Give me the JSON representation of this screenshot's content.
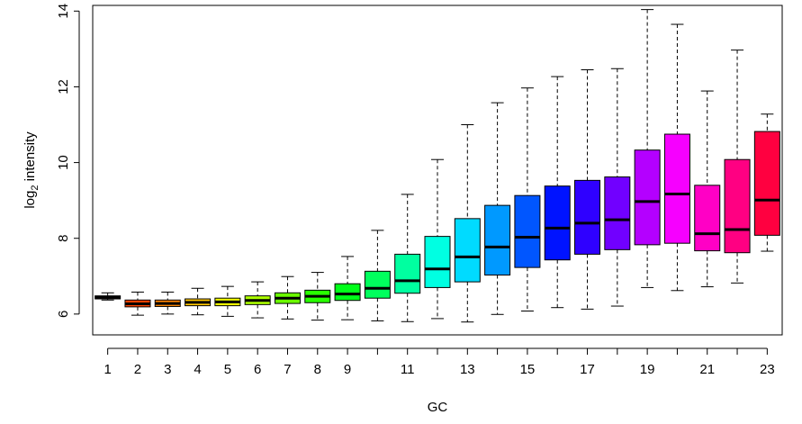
{
  "chart_data": {
    "type": "boxplot",
    "xlabel": "GC",
    "ylabel_main": "log",
    "ylabel_sub": "2",
    "ylabel_rest": " intensity",
    "ylim": [
      5.45,
      14.15
    ],
    "xlim": [
      0.5,
      23.5
    ],
    "yticks": [
      6,
      8,
      10,
      12,
      14
    ],
    "xticks": [
      1,
      2,
      3,
      4,
      5,
      6,
      7,
      8,
      9,
      11,
      13,
      15,
      17,
      19,
      21,
      23
    ],
    "grid": false,
    "whisker_style": "dashed",
    "boxes": [
      {
        "x": 1,
        "whisker_low": 6.37,
        "q1": 6.4,
        "median": 6.44,
        "q3": 6.48,
        "whisker_high": 6.56,
        "color": "#FF0000"
      },
      {
        "x": 2,
        "whisker_low": 5.97,
        "q1": 6.19,
        "median": 6.27,
        "q3": 6.37,
        "whisker_high": 6.58,
        "color": "#FF4200"
      },
      {
        "x": 3,
        "whisker_low": 6.0,
        "q1": 6.2,
        "median": 6.28,
        "q3": 6.37,
        "whisker_high": 6.58,
        "color": "#FF8500"
      },
      {
        "x": 4,
        "whisker_low": 5.98,
        "q1": 6.22,
        "median": 6.31,
        "q3": 6.4,
        "whisker_high": 6.68,
        "color": "#FFC800"
      },
      {
        "x": 5,
        "whisker_low": 5.94,
        "q1": 6.22,
        "median": 6.32,
        "q3": 6.42,
        "whisker_high": 6.73,
        "color": "#F0FF00"
      },
      {
        "x": 6,
        "whisker_low": 5.9,
        "q1": 6.25,
        "median": 6.36,
        "q3": 6.48,
        "whisker_high": 6.85,
        "color": "#ADFF00"
      },
      {
        "x": 7,
        "whisker_low": 5.87,
        "q1": 6.28,
        "median": 6.42,
        "q3": 6.56,
        "whisker_high": 6.99,
        "color": "#6BFF00"
      },
      {
        "x": 8,
        "whisker_low": 5.84,
        "q1": 6.3,
        "median": 6.47,
        "q3": 6.63,
        "whisker_high": 7.1,
        "color": "#28FF00"
      },
      {
        "x": 9,
        "whisker_low": 5.85,
        "q1": 6.36,
        "median": 6.53,
        "q3": 6.8,
        "whisker_high": 7.52,
        "color": "#00FF1A"
      },
      {
        "x": 10,
        "whisker_low": 5.82,
        "q1": 6.42,
        "median": 6.68,
        "q3": 7.13,
        "whisker_high": 8.21,
        "color": "#00FF5D"
      },
      {
        "x": 11,
        "whisker_low": 5.8,
        "q1": 6.55,
        "median": 6.88,
        "q3": 7.58,
        "whisker_high": 9.16,
        "color": "#00FFA0"
      },
      {
        "x": 12,
        "whisker_low": 5.88,
        "q1": 6.7,
        "median": 7.19,
        "q3": 8.05,
        "whisker_high": 10.08,
        "color": "#00FFE2"
      },
      {
        "x": 13,
        "whisker_low": 5.79,
        "q1": 6.85,
        "median": 7.51,
        "q3": 8.52,
        "whisker_high": 11.0,
        "color": "#00DBFF"
      },
      {
        "x": 14,
        "whisker_low": 5.99,
        "q1": 7.03,
        "median": 7.77,
        "q3": 8.87,
        "whisker_high": 11.58,
        "color": "#0099FF"
      },
      {
        "x": 15,
        "whisker_low": 6.08,
        "q1": 7.23,
        "median": 8.03,
        "q3": 9.13,
        "whisker_high": 11.97,
        "color": "#0056FF"
      },
      {
        "x": 16,
        "whisker_low": 6.17,
        "q1": 7.43,
        "median": 8.27,
        "q3": 9.38,
        "whisker_high": 12.27,
        "color": "#0013FF"
      },
      {
        "x": 17,
        "whisker_low": 6.13,
        "q1": 7.58,
        "median": 8.4,
        "q3": 9.53,
        "whisker_high": 12.45,
        "color": "#2F00FF"
      },
      {
        "x": 18,
        "whisker_low": 6.21,
        "q1": 7.7,
        "median": 8.49,
        "q3": 9.62,
        "whisker_high": 12.48,
        "color": "#7100FF"
      },
      {
        "x": 19,
        "whisker_low": 6.7,
        "q1": 7.83,
        "median": 8.97,
        "q3": 10.33,
        "whisker_high": 14.04,
        "color": "#B400FF"
      },
      {
        "x": 20,
        "whisker_low": 6.62,
        "q1": 7.87,
        "median": 9.17,
        "q3": 10.75,
        "whisker_high": 13.65,
        "color": "#F600FF"
      },
      {
        "x": 21,
        "whisker_low": 6.72,
        "q1": 7.67,
        "median": 8.12,
        "q3": 9.4,
        "whisker_high": 11.89,
        "color": "#FF00C5"
      },
      {
        "x": 22,
        "whisker_low": 6.82,
        "q1": 7.62,
        "median": 8.23,
        "q3": 10.08,
        "whisker_high": 12.97,
        "color": "#FF0082"
      },
      {
        "x": 23,
        "whisker_low": 7.66,
        "q1": 8.08,
        "median": 9.01,
        "q3": 10.82,
        "whisker_high": 11.28,
        "color": "#FF0040"
      }
    ]
  }
}
